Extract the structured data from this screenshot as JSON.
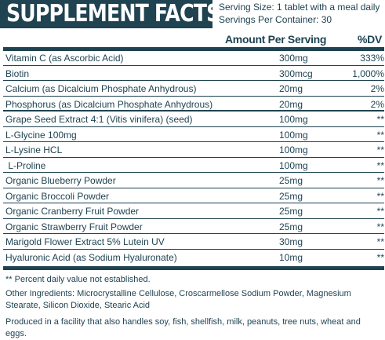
{
  "header": {
    "title": "SUPPLEMENT FACTS",
    "serving_size": "Serving Size: 1 tablet with a meal daily",
    "servings_per_container": "Servings Per Container: 30"
  },
  "columns": {
    "amount": "Amount Per Serving",
    "dv": "%DV"
  },
  "rows": [
    {
      "name": "Vitamin C (as Ascorbic Acid)",
      "amount": "300mg",
      "dv": "333%"
    },
    {
      "name": "Biotin",
      "amount": "300mcg",
      "dv": "1,000%"
    },
    {
      "name": "Calcium (as Dicalcium Phosphate Anhydrous)",
      "amount": "20mg",
      "dv": "2%"
    },
    {
      "name": "Phosphorus (as Dicalcium Phosphate Anhydrous)",
      "amount": "20mg",
      "dv": "2%"
    },
    {
      "name": "Grape Seed Extract 4:1 (Vitis vinifera) (seed)",
      "amount": "100mg",
      "dv": "**"
    },
    {
      "name": "L-Glycine 100mg",
      "amount": "100mg",
      "dv": "**"
    },
    {
      "name": "L-Lysine HCL",
      "amount": "100mg",
      "dv": "**"
    },
    {
      "name": " L-Proline",
      "amount": "100mg",
      "dv": "**"
    },
    {
      "name": "Organic Blueberry Powder",
      "amount": "25mg",
      "dv": "**"
    },
    {
      "name": "Organic Broccoli Powder",
      "amount": "25mg",
      "dv": "**"
    },
    {
      "name": "Organic Cranberry Fruit Powder",
      "amount": "25mg",
      "dv": "**"
    },
    {
      "name": "Organic Strawberry Fruit Powder",
      "amount": "25mg",
      "dv": "**"
    },
    {
      "name": "Marigold Flower Extract 5% Lutein UV",
      "amount": "30mg",
      "dv": "**"
    },
    {
      "name": "Hyaluronic Acid (as Sodium Hyaluronate)",
      "amount": "10mg",
      "dv": "**"
    }
  ],
  "notes": {
    "dv_note": "** Percent daily value not established.",
    "other_ingredients": "Other Ingredients: Microcrystalline Cellulose, Croscarmellose Sodium Powder, Magnesium Stearate, Silicon Dioxide, Stearic Acid",
    "allergen": "Produced in a facility that also handles soy, fish, shellfish, milk, peanuts, tree nuts, wheat and eggs."
  }
}
